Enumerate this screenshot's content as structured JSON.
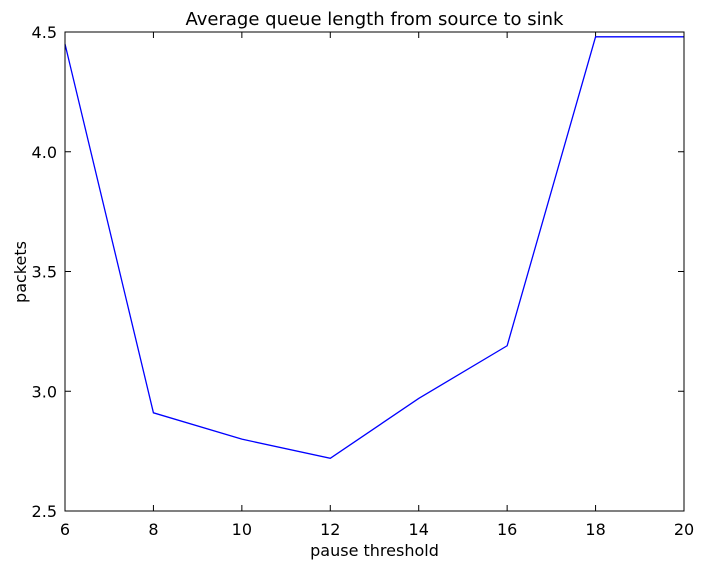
{
  "chart_data": {
    "type": "line",
    "title": "Average queue length from source to sink",
    "xlabel": "pause threshold",
    "ylabel": "packets",
    "xlim": [
      6,
      20
    ],
    "ylim": [
      2.5,
      4.5
    ],
    "xticks": [
      6,
      8,
      10,
      12,
      14,
      16,
      18,
      20
    ],
    "xtick_labels": [
      "6",
      "8",
      "10",
      "12",
      "14",
      "16",
      "18",
      "20"
    ],
    "yticks": [
      2.5,
      3.0,
      3.5,
      4.0,
      4.5
    ],
    "ytick_labels": [
      "2.5",
      "3.0",
      "3.5",
      "4.0",
      "4.5"
    ],
    "grid": false,
    "series": [
      {
        "color": "#0000ff",
        "x": [
          6,
          8,
          10,
          12,
          14,
          16,
          18,
          20
        ],
        "y": [
          4.45,
          2.91,
          2.8,
          2.72,
          2.97,
          3.19,
          4.48,
          4.48
        ]
      }
    ]
  }
}
